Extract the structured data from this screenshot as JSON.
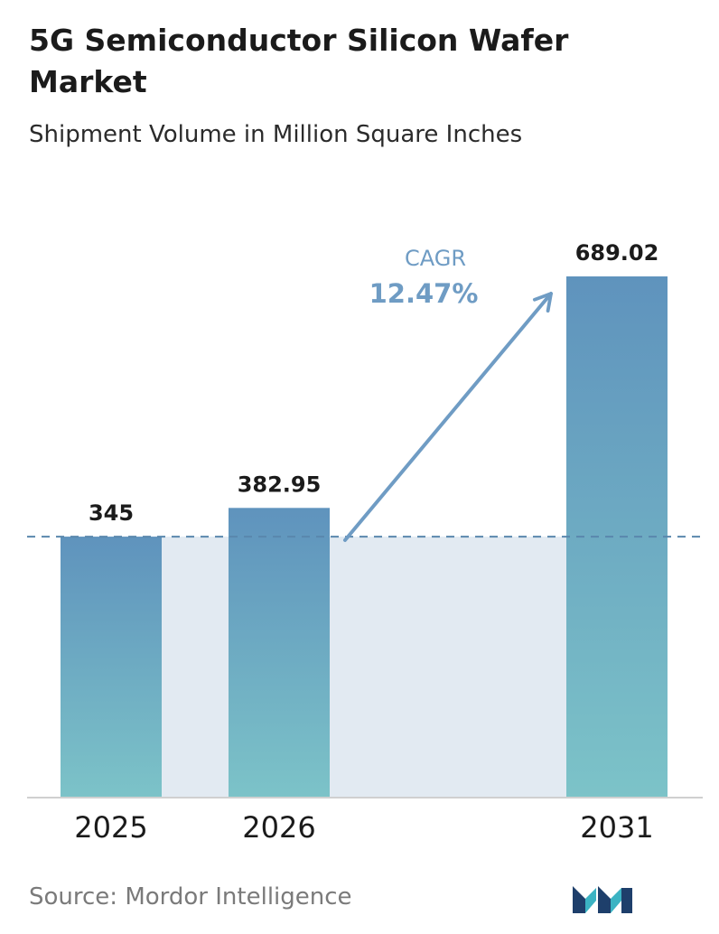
{
  "title": "5G Semiconductor Silicon Wafer Market",
  "subtitle": "Shipment Volume in Million Square Inches",
  "source": "Source:  Mordor Intelligence",
  "colors": {
    "bar_top": "#5f93bd",
    "bar_bottom": "#7cc3c8",
    "band": "#e2eaf2",
    "dashed_line": "#5a87ad",
    "cagr": "#6f9cc4",
    "axis": "#d0d0d0",
    "logo_dark": "#1e3f6b",
    "logo_teal": "#3bb3c3"
  },
  "logo_icon": "mordor-intelligence-logo-icon",
  "chart_data": {
    "type": "bar",
    "categories": [
      "2025",
      "2026",
      "2031"
    ],
    "values": [
      345,
      382.95,
      689.02
    ],
    "value_labels": [
      "345",
      "382.95",
      "689.02"
    ],
    "title": "5G Semiconductor Silicon Wafer Market",
    "subtitle": "Shipment Volume in Million Square Inches",
    "reference_line": 345,
    "annotation": {
      "label": "CAGR",
      "value": "12.47%"
    },
    "grid": false,
    "legend": "none"
  }
}
